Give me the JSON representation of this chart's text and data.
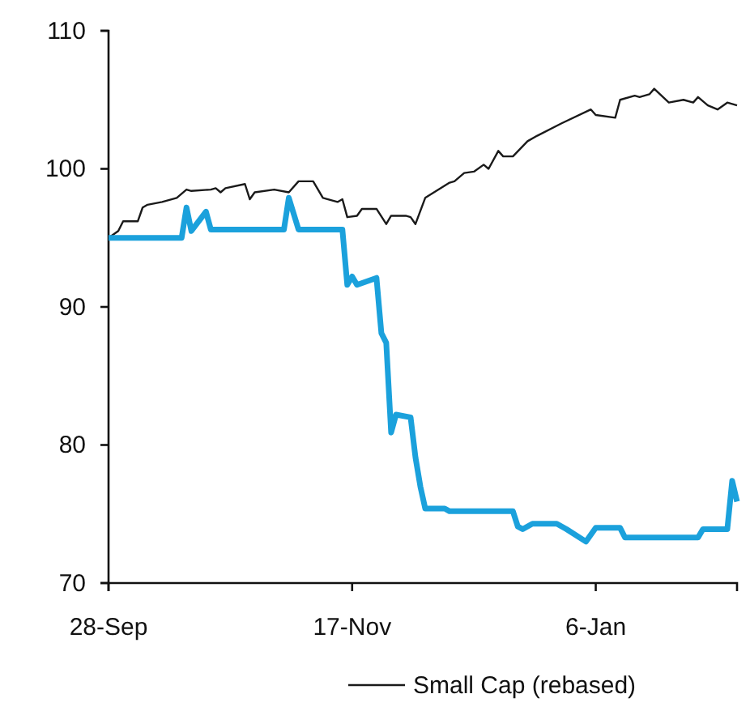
{
  "chart_data": {
    "type": "line",
    "legend": "bottom",
    "line_style": "solid",
    "marker": "none",
    "categories": [
      "28-Sep",
      null,
      null,
      null,
      null,
      null,
      null,
      null,
      null,
      null,
      null,
      null,
      null,
      null,
      null,
      null,
      null,
      null,
      null,
      null,
      null,
      null,
      null,
      null,
      null,
      null,
      null,
      null,
      null,
      null,
      null,
      null,
      null,
      null,
      null,
      null,
      null,
      null,
      null,
      null,
      null,
      null,
      null,
      null,
      null,
      null,
      null,
      null,
      null,
      null,
      "17-Nov",
      null,
      null,
      null,
      null,
      null,
      null,
      null,
      null,
      null,
      null,
      null,
      null,
      null,
      null,
      null,
      null,
      null,
      null,
      null,
      null,
      null,
      null,
      null,
      null,
      null,
      null,
      null,
      null,
      null,
      null,
      null,
      null,
      null,
      null,
      null,
      null,
      null,
      null,
      null,
      null,
      null,
      null,
      null,
      null,
      null,
      null,
      null,
      null,
      null,
      "6-Jan",
      null,
      null,
      null,
      null,
      null,
      null,
      null,
      null,
      null,
      null,
      null,
      null,
      null,
      null,
      null,
      null,
      null,
      null,
      null,
      null,
      null,
      null,
      null,
      null,
      null,
      null,
      null,
      null,
      null
    ],
    "ylim": [
      70,
      110
    ],
    "yticks": [
      70,
      80,
      90,
      100,
      110
    ],
    "series": [
      {
        "color": "#1ba1dc",
        "values": [
          95.0,
          null,
          null,
          null,
          null,
          null,
          null,
          null,
          null,
          null,
          null,
          null,
          null,
          null,
          null,
          95.0,
          97.2,
          95.5,
          null,
          null,
          96.9,
          95.6,
          null,
          null,
          null,
          null,
          null,
          null,
          null,
          null,
          null,
          null,
          null,
          null,
          null,
          null,
          95.6,
          97.9,
          null,
          95.6,
          null,
          null,
          null,
          null,
          null,
          null,
          null,
          null,
          95.6,
          91.6,
          92.2,
          91.6,
          null,
          null,
          null,
          92.1,
          88.1,
          87.4,
          80.9,
          82.2,
          null,
          null,
          82.0,
          79.1,
          77.0,
          75.4,
          null,
          null,
          null,
          75.4,
          75.2,
          null,
          null,
          null,
          null,
          null,
          null,
          null,
          null,
          null,
          null,
          null,
          null,
          75.2,
          74.1,
          73.9,
          null,
          74.3,
          null,
          null,
          null,
          null,
          74.3,
          null,
          73.9,
          null,
          null,
          null,
          73.0,
          null,
          74.0,
          null,
          null,
          null,
          null,
          74.0,
          73.3,
          null,
          null,
          null,
          null,
          null,
          null,
          null,
          null,
          null,
          null,
          null,
          null,
          null,
          null,
          73.3,
          73.9,
          null,
          null,
          null,
          null,
          73.9,
          77.4,
          75.9
        ]
      },
      {
        "name": "Small Cap (rebased)",
        "color": "#1a1a1a",
        "values": [
          95.0,
          null,
          95.5,
          96.2,
          null,
          null,
          96.2,
          97.2,
          97.4,
          null,
          null,
          97.6,
          null,
          null,
          97.9,
          null,
          98.5,
          98.4,
          null,
          null,
          null,
          98.5,
          98.6,
          98.3,
          98.6,
          null,
          null,
          null,
          98.9,
          97.8,
          98.3,
          null,
          null,
          null,
          98.5,
          null,
          null,
          98.3,
          null,
          99.1,
          null,
          null,
          99.1,
          null,
          97.9,
          null,
          null,
          97.6,
          97.8,
          96.5,
          null,
          96.6,
          97.1,
          null,
          null,
          97.1,
          null,
          96.0,
          96.6,
          null,
          null,
          96.6,
          96.5,
          96.0,
          null,
          97.9,
          null,
          null,
          null,
          null,
          99.0,
          99.1,
          null,
          99.7,
          null,
          99.8,
          null,
          100.3,
          100.0,
          null,
          101.3,
          100.9,
          null,
          100.9,
          null,
          null,
          102.0,
          null,
          102.4,
          null,
          null,
          null,
          null,
          103.3,
          null,
          null,
          null,
          null,
          null,
          104.3,
          103.9,
          null,
          null,
          null,
          103.7,
          105.0,
          null,
          null,
          105.3,
          105.2,
          null,
          105.4,
          105.8,
          null,
          null,
          104.8,
          null,
          null,
          105.0,
          null,
          104.8,
          105.2,
          null,
          104.6,
          null,
          104.3,
          null,
          104.8,
          null,
          104.6
        ]
      }
    ]
  }
}
